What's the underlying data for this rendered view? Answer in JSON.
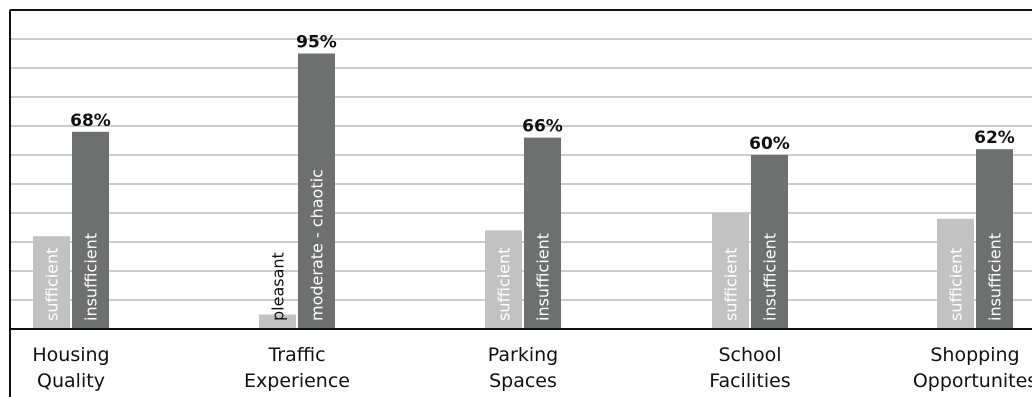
{
  "chart_data": {
    "type": "bar",
    "ylim": [
      0,
      100
    ],
    "grid": true,
    "colors": {
      "sufficient": "#c2c2c2",
      "insufficient": "#6d706f"
    },
    "categories": [
      {
        "label_lines": [
          "Housing",
          "Quality"
        ],
        "bars": [
          {
            "label": "sufficient",
            "value": 32
          },
          {
            "label": "insufficient",
            "value": 68,
            "value_label": "68%"
          }
        ]
      },
      {
        "label_lines": [
          "Traffic",
          "Experience"
        ],
        "bars": [
          {
            "label": "pleasant",
            "value": 5
          },
          {
            "label": "moderate - chaotic",
            "value": 95,
            "value_label": "95%"
          }
        ]
      },
      {
        "label_lines": [
          "Parking",
          "Spaces"
        ],
        "bars": [
          {
            "label": "sufficient",
            "value": 34
          },
          {
            "label": "insufficient",
            "value": 66,
            "value_label": "66%"
          }
        ]
      },
      {
        "label_lines": [
          "School",
          "Facilities"
        ],
        "bars": [
          {
            "label": "sufficient",
            "value": 40
          },
          {
            "label": "insufficient",
            "value": 60,
            "value_label": "60%"
          }
        ]
      },
      {
        "label_lines": [
          "Shopping",
          "Opportunites"
        ],
        "bars": [
          {
            "label": "sufficient",
            "value": 38
          },
          {
            "label": "insufficient",
            "value": 62,
            "value_label": "62%"
          }
        ]
      }
    ]
  }
}
